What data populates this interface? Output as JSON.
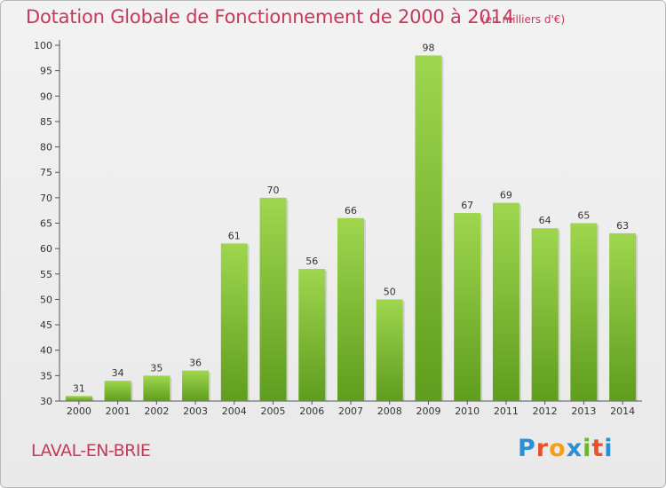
{
  "header": {
    "title": "Dotation Globale de Fonctionnement de 2000 à 2014",
    "subtitle": "(en milliers d'€)"
  },
  "footer": {
    "place": "LAVAL-EN-BRIE",
    "logo": [
      "P",
      "r",
      "o",
      "x",
      "i",
      "t",
      "i"
    ]
  },
  "chart_data": {
    "type": "bar",
    "categories": [
      "2000",
      "2001",
      "2002",
      "2003",
      "2004",
      "2005",
      "2006",
      "2007",
      "2008",
      "2009",
      "2010",
      "2011",
      "2012",
      "2013",
      "2014"
    ],
    "values": [
      31,
      34,
      35,
      36,
      61,
      70,
      56,
      66,
      50,
      98,
      67,
      69,
      64,
      65,
      63
    ],
    "data_labels": [
      "31",
      "34",
      "35",
      "36",
      "61",
      "70",
      "56",
      "66",
      "50",
      "98",
      "67",
      "69",
      "64",
      "65",
      "63"
    ],
    "title": "Dotation Globale de Fonctionnement de 2000 à 2014",
    "subtitle": "(en milliers d'€)",
    "xlabel": "",
    "ylabel": "",
    "ylim": [
      30,
      100
    ],
    "yticks": [
      30,
      35,
      40,
      45,
      50,
      55,
      60,
      65,
      70,
      75,
      80,
      85,
      90,
      95,
      100
    ],
    "grid": false,
    "bar_color": "#7cbf2e",
    "bar_color_light": "#9fd64e",
    "bar_color_dark": "#5f9d1e",
    "axis_color": "#555555"
  }
}
